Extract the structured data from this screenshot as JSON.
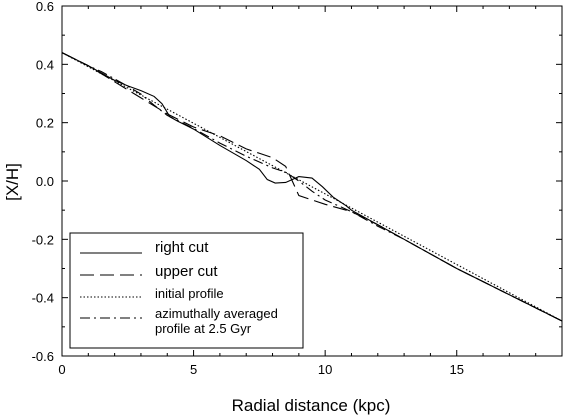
{
  "chart_data": {
    "type": "line",
    "title": "",
    "xlabel": "Radial distance (kpc)",
    "ylabel": "[X/H]",
    "xlim": [
      0,
      19
    ],
    "ylim": [
      -0.6,
      0.6
    ],
    "x_ticks": [
      0,
      5,
      10,
      15
    ],
    "x_tick_labels": [
      "0",
      "5",
      "10",
      "15"
    ],
    "y_ticks": [
      -0.6,
      -0.4,
      -0.2,
      0.0,
      0.2,
      0.4,
      0.6
    ],
    "y_tick_labels": [
      "-0.6",
      "-0.4",
      "-0.2",
      "0.0",
      "0.2",
      "0.4",
      "0.6"
    ],
    "grid": false,
    "legend_position": "bottom-left",
    "series": [
      {
        "name": "right cut",
        "style": "solid",
        "x": [
          0,
          1,
          2,
          2.5,
          3,
          3.5,
          3.8,
          4.1,
          4.4,
          5,
          6,
          7,
          7.5,
          7.8,
          8.1,
          8.5,
          9,
          9.5,
          9.9,
          10.3,
          10.8,
          11,
          12,
          13,
          14,
          15,
          16,
          17,
          18,
          19
        ],
        "y": [
          0.44,
          0.395,
          0.345,
          0.326,
          0.31,
          0.29,
          0.265,
          0.22,
          0.205,
          0.178,
          0.122,
          0.07,
          0.04,
          0.005,
          -0.007,
          -0.005,
          0.015,
          0.01,
          -0.02,
          -0.055,
          -0.085,
          -0.1,
          -0.15,
          -0.2,
          -0.25,
          -0.3,
          -0.345,
          -0.39,
          -0.435,
          -0.48
        ]
      },
      {
        "name": "upper cut",
        "style": "dashed",
        "x": [
          0,
          1,
          2,
          3,
          4,
          5,
          6,
          7,
          7.5,
          8,
          8.5,
          8.6,
          9,
          10,
          11,
          12,
          13,
          14,
          15,
          16,
          17,
          18,
          19
        ],
        "y": [
          0.44,
          0.395,
          0.34,
          0.285,
          0.23,
          0.185,
          0.155,
          0.11,
          0.095,
          0.08,
          0.05,
          0.03,
          -0.05,
          -0.08,
          -0.105,
          -0.15,
          -0.2,
          -0.25,
          -0.3,
          -0.345,
          -0.39,
          -0.435,
          -0.48
        ]
      },
      {
        "name": "initial profile",
        "style": "dotted",
        "x": [
          0,
          19
        ],
        "y": [
          0.44,
          -0.48
        ]
      },
      {
        "name": "azimuthally averaged profile at 2.5 Gyr",
        "style": "dashdot",
        "x": [
          0,
          1,
          1.5,
          2,
          2.5,
          3,
          3.5,
          4,
          5,
          6,
          7,
          8,
          8.5,
          9,
          9.5,
          10,
          11,
          12,
          13,
          14,
          15,
          16,
          17,
          18,
          19
        ],
        "y": [
          0.44,
          0.395,
          0.375,
          0.35,
          0.325,
          0.298,
          0.26,
          0.225,
          0.18,
          0.13,
          0.085,
          0.045,
          0.03,
          0.0,
          -0.035,
          -0.065,
          -0.105,
          -0.155,
          -0.2,
          -0.25,
          -0.3,
          -0.345,
          -0.39,
          -0.435,
          -0.48
        ]
      }
    ],
    "legend": [
      {
        "label": "right cut",
        "style": "solid"
      },
      {
        "label": "upper cut",
        "style": "dashed"
      },
      {
        "label": "initial profile",
        "style": "dotted"
      },
      {
        "label": "azimuthally averaged",
        "label2": "profile at 2.5 Gyr",
        "style": "dashdot"
      }
    ]
  }
}
